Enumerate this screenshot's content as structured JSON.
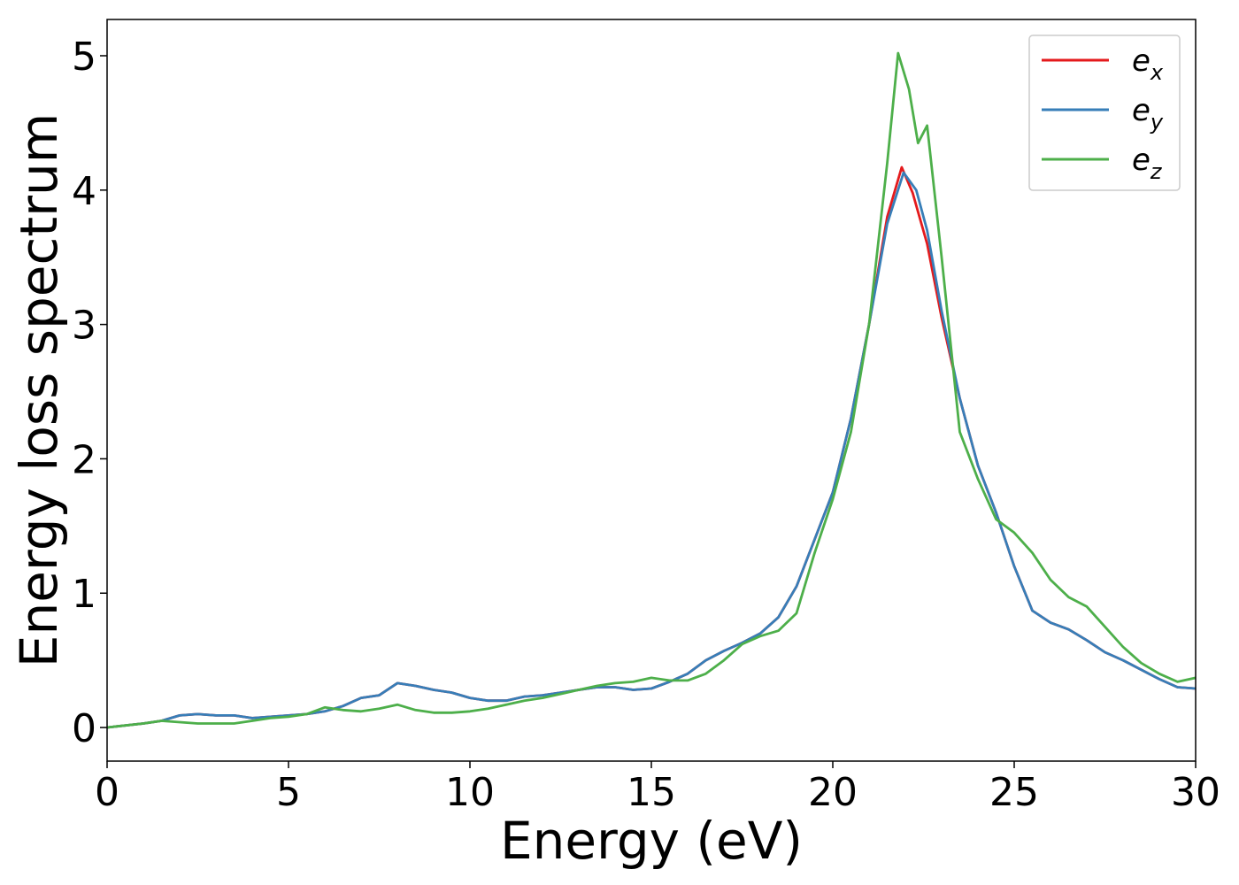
{
  "chart_data": {
    "type": "line",
    "xlabel": "Energy (eV)",
    "ylabel": "Energy loss spectrum",
    "xlim": [
      0,
      30
    ],
    "ylim": [
      -0.25,
      5.27
    ],
    "xticks": [
      0,
      5,
      10,
      15,
      20,
      25,
      30
    ],
    "yticks": [
      0,
      1,
      2,
      3,
      4,
      5
    ],
    "grid": false,
    "legend_position": "top-right",
    "series": [
      {
        "name": "e",
        "subscript": "x",
        "color": "#e41a1c",
        "points": [
          [
            0,
            0.0
          ],
          [
            1,
            0.03
          ],
          [
            1.5,
            0.05
          ],
          [
            2,
            0.09
          ],
          [
            2.5,
            0.1
          ],
          [
            3,
            0.09
          ],
          [
            3.5,
            0.09
          ],
          [
            4,
            0.07
          ],
          [
            4.5,
            0.08
          ],
          [
            5,
            0.09
          ],
          [
            5.5,
            0.1
          ],
          [
            6,
            0.12
          ],
          [
            6.5,
            0.16
          ],
          [
            7,
            0.22
          ],
          [
            7.5,
            0.24
          ],
          [
            8,
            0.33
          ],
          [
            8.5,
            0.31
          ],
          [
            9,
            0.28
          ],
          [
            9.5,
            0.26
          ],
          [
            10,
            0.22
          ],
          [
            10.5,
            0.2
          ],
          [
            11,
            0.2
          ],
          [
            11.5,
            0.23
          ],
          [
            12,
            0.24
          ],
          [
            12.5,
            0.26
          ],
          [
            13,
            0.28
          ],
          [
            13.5,
            0.3
          ],
          [
            14,
            0.3
          ],
          [
            14.5,
            0.28
          ],
          [
            15,
            0.29
          ],
          [
            15.5,
            0.34
          ],
          [
            16,
            0.4
          ],
          [
            16.5,
            0.5
          ],
          [
            17,
            0.57
          ],
          [
            17.5,
            0.63
          ],
          [
            18,
            0.7
          ],
          [
            18.5,
            0.82
          ],
          [
            19,
            1.05
          ],
          [
            19.5,
            1.4
          ],
          [
            20,
            1.75
          ],
          [
            20.5,
            2.3
          ],
          [
            21,
            3.0
          ],
          [
            21.5,
            3.8
          ],
          [
            21.9,
            4.17
          ],
          [
            22.2,
            3.98
          ],
          [
            22.6,
            3.6
          ],
          [
            23,
            3.05
          ],
          [
            23.5,
            2.45
          ],
          [
            24,
            1.95
          ],
          [
            24.5,
            1.6
          ],
          [
            25,
            1.2
          ],
          [
            25.5,
            0.87
          ],
          [
            26,
            0.78
          ],
          [
            26.5,
            0.73
          ],
          [
            27,
            0.65
          ],
          [
            27.5,
            0.56
          ],
          [
            28,
            0.5
          ],
          [
            28.5,
            0.43
          ],
          [
            29,
            0.36
          ],
          [
            29.5,
            0.3
          ],
          [
            30,
            0.29
          ]
        ]
      },
      {
        "name": "e",
        "subscript": "y",
        "color": "#377eb8",
        "points": [
          [
            0,
            0.0
          ],
          [
            1,
            0.03
          ],
          [
            1.5,
            0.05
          ],
          [
            2,
            0.09
          ],
          [
            2.5,
            0.1
          ],
          [
            3,
            0.09
          ],
          [
            3.5,
            0.09
          ],
          [
            4,
            0.07
          ],
          [
            4.5,
            0.08
          ],
          [
            5,
            0.09
          ],
          [
            5.5,
            0.1
          ],
          [
            6,
            0.12
          ],
          [
            6.5,
            0.16
          ],
          [
            7,
            0.22
          ],
          [
            7.5,
            0.24
          ],
          [
            8,
            0.33
          ],
          [
            8.5,
            0.31
          ],
          [
            9,
            0.28
          ],
          [
            9.5,
            0.26
          ],
          [
            10,
            0.22
          ],
          [
            10.5,
            0.2
          ],
          [
            11,
            0.2
          ],
          [
            11.5,
            0.23
          ],
          [
            12,
            0.24
          ],
          [
            12.5,
            0.26
          ],
          [
            13,
            0.28
          ],
          [
            13.5,
            0.3
          ],
          [
            14,
            0.3
          ],
          [
            14.5,
            0.28
          ],
          [
            15,
            0.29
          ],
          [
            15.5,
            0.34
          ],
          [
            16,
            0.4
          ],
          [
            16.5,
            0.5
          ],
          [
            17,
            0.57
          ],
          [
            17.5,
            0.63
          ],
          [
            18,
            0.7
          ],
          [
            18.5,
            0.82
          ],
          [
            19,
            1.05
          ],
          [
            19.5,
            1.4
          ],
          [
            20,
            1.75
          ],
          [
            20.5,
            2.3
          ],
          [
            21,
            3.0
          ],
          [
            21.5,
            3.75
          ],
          [
            21.95,
            4.13
          ],
          [
            22.3,
            4.0
          ],
          [
            22.6,
            3.7
          ],
          [
            23,
            3.1
          ],
          [
            23.5,
            2.45
          ],
          [
            24,
            1.95
          ],
          [
            24.5,
            1.6
          ],
          [
            25,
            1.2
          ],
          [
            25.5,
            0.87
          ],
          [
            26,
            0.78
          ],
          [
            26.5,
            0.73
          ],
          [
            27,
            0.65
          ],
          [
            27.5,
            0.56
          ],
          [
            28,
            0.5
          ],
          [
            28.5,
            0.43
          ],
          [
            29,
            0.36
          ],
          [
            29.5,
            0.3
          ],
          [
            30,
            0.29
          ]
        ]
      },
      {
        "name": "e",
        "subscript": "z",
        "color": "#4daf4a",
        "points": [
          [
            0,
            0.0
          ],
          [
            1,
            0.03
          ],
          [
            1.5,
            0.05
          ],
          [
            2,
            0.04
          ],
          [
            2.5,
            0.03
          ],
          [
            3,
            0.03
          ],
          [
            3.5,
            0.03
          ],
          [
            4,
            0.05
          ],
          [
            4.5,
            0.07
          ],
          [
            5,
            0.08
          ],
          [
            5.5,
            0.1
          ],
          [
            6,
            0.15
          ],
          [
            6.5,
            0.13
          ],
          [
            7,
            0.12
          ],
          [
            7.5,
            0.14
          ],
          [
            8,
            0.17
          ],
          [
            8.5,
            0.13
          ],
          [
            9,
            0.11
          ],
          [
            9.5,
            0.11
          ],
          [
            10,
            0.12
          ],
          [
            10.5,
            0.14
          ],
          [
            11,
            0.17
          ],
          [
            11.5,
            0.2
          ],
          [
            12,
            0.22
          ],
          [
            12.5,
            0.25
          ],
          [
            13,
            0.28
          ],
          [
            13.5,
            0.31
          ],
          [
            14,
            0.33
          ],
          [
            14.5,
            0.34
          ],
          [
            15,
            0.37
          ],
          [
            15.5,
            0.35
          ],
          [
            16,
            0.35
          ],
          [
            16.5,
            0.4
          ],
          [
            17,
            0.5
          ],
          [
            17.5,
            0.62
          ],
          [
            18,
            0.68
          ],
          [
            18.5,
            0.72
          ],
          [
            19,
            0.85
          ],
          [
            19.5,
            1.3
          ],
          [
            20,
            1.7
          ],
          [
            20.5,
            2.2
          ],
          [
            21,
            3.0
          ],
          [
            21.5,
            4.2
          ],
          [
            21.8,
            5.02
          ],
          [
            22.1,
            4.75
          ],
          [
            22.35,
            4.35
          ],
          [
            22.6,
            4.48
          ],
          [
            23,
            3.5
          ],
          [
            23.5,
            2.2
          ],
          [
            24,
            1.85
          ],
          [
            24.5,
            1.55
          ],
          [
            25,
            1.45
          ],
          [
            25.5,
            1.3
          ],
          [
            26,
            1.1
          ],
          [
            26.5,
            0.97
          ],
          [
            27,
            0.9
          ],
          [
            27.5,
            0.75
          ],
          [
            28,
            0.6
          ],
          [
            28.5,
            0.48
          ],
          [
            29,
            0.4
          ],
          [
            29.5,
            0.34
          ],
          [
            30,
            0.37
          ]
        ]
      }
    ]
  }
}
